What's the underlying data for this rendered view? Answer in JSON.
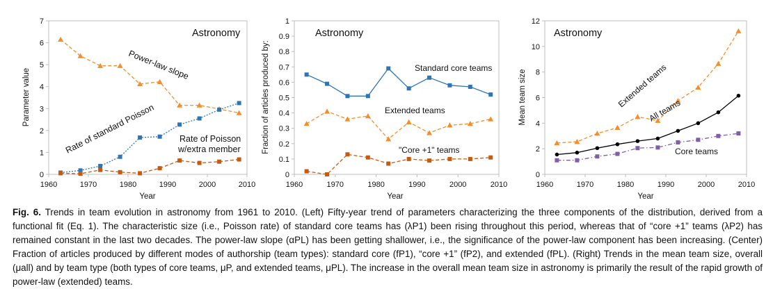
{
  "chart_data": [
    {
      "type": "line",
      "title": "Astronomy",
      "xlabel": "Year",
      "ylabel": "Parameter value",
      "xlim": [
        1960,
        2010
      ],
      "ylim": [
        0,
        7
      ],
      "xticks": [
        1960,
        1970,
        1980,
        1990,
        2000,
        2010
      ],
      "yticks": [
        0,
        1,
        2,
        3,
        4,
        5,
        6,
        7
      ],
      "grid": false,
      "series": [
        {
          "name": "Power-law slope",
          "marker": "triangle",
          "color": "#f28e2b",
          "dash": "dashed",
          "x": [
            1963,
            1968,
            1973,
            1978,
            1983,
            1988,
            1993,
            1998,
            2003,
            2008
          ],
          "y": [
            6.15,
            5.4,
            4.95,
            4.95,
            4.12,
            4.22,
            3.15,
            3.15,
            2.98,
            2.8
          ]
        },
        {
          "name": "Rate of standard Poisson",
          "marker": "square",
          "color": "#2e75b6",
          "dash": "dotted",
          "x": [
            1963,
            1968,
            1973,
            1978,
            1983,
            1988,
            1993,
            1998,
            2003,
            2008
          ],
          "y": [
            0.08,
            0.18,
            0.38,
            0.8,
            1.68,
            1.72,
            2.27,
            2.55,
            2.95,
            3.25
          ]
        },
        {
          "name": "Rate of Poisson w/extra member",
          "marker": "square",
          "color": "#c55a11",
          "dash": "dashed",
          "x": [
            1963,
            1968,
            1973,
            1978,
            1983,
            1988,
            1993,
            1998,
            2003,
            2008
          ],
          "y": [
            0.05,
            0.03,
            0.2,
            0.1,
            0.05,
            0.28,
            0.63,
            0.52,
            0.58,
            0.68
          ]
        }
      ],
      "annotations": [
        {
          "text": "Power-law slope"
        },
        {
          "text": "Rate of standard Poisson"
        },
        {
          "text": "Rate of Poisson"
        },
        {
          "text": "w/extra member"
        }
      ]
    },
    {
      "type": "line",
      "title": "Astronomy",
      "xlabel": "Year",
      "ylabel": "Fraction of articles produced by:",
      "xlim": [
        1960,
        2010
      ],
      "ylim": [
        0,
        1
      ],
      "xticks": [
        1960,
        1970,
        1980,
        1990,
        2000,
        2010
      ],
      "yticks": [
        0,
        0.1,
        0.2,
        0.3,
        0.4,
        0.5,
        0.6,
        0.7,
        0.8,
        0.9,
        1
      ],
      "grid": false,
      "series": [
        {
          "name": "Standard core teams",
          "marker": "square",
          "color": "#2e75b6",
          "dash": "solid",
          "x": [
            1963,
            1968,
            1973,
            1978,
            1983,
            1988,
            1993,
            1998,
            2003,
            2008
          ],
          "y": [
            0.65,
            0.59,
            0.51,
            0.51,
            0.69,
            0.56,
            0.63,
            0.58,
            0.57,
            0.52
          ]
        },
        {
          "name": "Extended teams",
          "marker": "triangle",
          "color": "#f28e2b",
          "dash": "dashed",
          "x": [
            1963,
            1968,
            1973,
            1978,
            1983,
            1988,
            1993,
            1998,
            2003,
            2008
          ],
          "y": [
            0.33,
            0.41,
            0.36,
            0.38,
            0.23,
            0.34,
            0.27,
            0.32,
            0.33,
            0.36
          ]
        },
        {
          "name": "\"Core +1\" teams",
          "marker": "square",
          "color": "#c55a11",
          "dash": "dashed",
          "x": [
            1963,
            1968,
            1973,
            1978,
            1983,
            1988,
            1993,
            1998,
            2003,
            2008
          ],
          "y": [
            0.02,
            0.0,
            0.13,
            0.11,
            0.07,
            0.1,
            0.09,
            0.1,
            0.1,
            0.11
          ]
        }
      ],
      "annotations": [
        {
          "text": "Standard core teams"
        },
        {
          "text": "Extended  teams"
        },
        {
          "text": "\"Core +1\" teams"
        }
      ]
    },
    {
      "type": "line",
      "title": "Astronomy",
      "xlabel": "Year",
      "ylabel": "Mean team size",
      "xlim": [
        1960,
        2010
      ],
      "ylim": [
        0,
        12
      ],
      "xticks": [
        1960,
        1970,
        1980,
        1990,
        2000,
        2010
      ],
      "yticks": [
        0,
        2,
        4,
        6,
        8,
        10,
        12
      ],
      "grid": false,
      "series": [
        {
          "name": "Extended teams",
          "marker": "triangle",
          "color": "#f28e2b",
          "dash": "dashed",
          "x": [
            1963,
            1968,
            1973,
            1978,
            1983,
            1988,
            1993,
            1998,
            2003,
            2008
          ],
          "y": [
            2.45,
            2.55,
            3.2,
            3.65,
            4.5,
            4.2,
            5.75,
            6.8,
            8.65,
            11.2
          ]
        },
        {
          "name": "All teams",
          "marker": "circle",
          "color": "#000000",
          "dash": "solid",
          "x": [
            1963,
            1968,
            1973,
            1978,
            1983,
            1988,
            1993,
            1998,
            2003,
            2008
          ],
          "y": [
            1.55,
            1.7,
            2.05,
            2.35,
            2.6,
            2.8,
            3.4,
            4.0,
            4.85,
            6.15
          ]
        },
        {
          "name": "Core teams",
          "marker": "square",
          "color": "#7f5fa8",
          "dash": "dashdot",
          "x": [
            1963,
            1968,
            1973,
            1978,
            1983,
            1988,
            1993,
            1998,
            2003,
            2008
          ],
          "y": [
            1.1,
            1.1,
            1.4,
            1.6,
            2.05,
            2.1,
            2.5,
            2.7,
            3.0,
            3.2
          ]
        }
      ],
      "annotations": [
        {
          "text": "Extended teams"
        },
        {
          "text": "All teams"
        },
        {
          "text": "Core teams"
        }
      ]
    }
  ],
  "caption": {
    "label": "Fig. 6.",
    "text": "Trends in team evolution in astronomy from 1961 to 2010. (Left) Fifty-year trend of parameters characterizing the three components of the distribution, derived from a functional fit (Eq. 1). The characteristic size (i.e., Poisson rate) of standard core teams has (λP1) been rising throughout this period, whereas that of “core +1” teams (λP2) has remained constant in the last two decades. The power-law slope (αPL) has been getting shallower, i.e., the significance of the power-law component has been increasing. (Center) Fraction of articles produced by different modes of authorship (team types): standard core (fP1), “core +1” (fP2), and extended (fPL). (Right) Trends in the mean team size, overall (μall) and by team type (both types of core teams, μP, and extended teams, μPL). The increase in the overall mean team size in astronomy is primarily the result of the rapid growth of power-law (extended) teams."
  }
}
